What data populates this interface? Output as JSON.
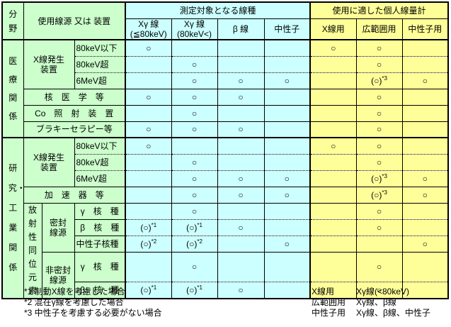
{
  "colors": {
    "green": "#ccffcc",
    "cyan": "#ccffff",
    "yellow": "#ffff99",
    "border": "#000000"
  },
  "table": {
    "corner_field": "分野",
    "corner_source": "使用線源 又は 装置",
    "group_measure": "測定対象となる線種",
    "group_dosimeter": "使用に適した個人線量計",
    "columns": [
      {
        "l1": "Xγ 線",
        "l2": "(≦80keV)"
      },
      {
        "l1": "Xγ 線",
        "l2": "(80keV<)"
      },
      {
        "l1": "β 線",
        "l2": ""
      },
      {
        "l1": "中性子",
        "l2": ""
      },
      {
        "l1": "X線用",
        "l2": ""
      },
      {
        "l1": "広範囲用",
        "l2": ""
      },
      {
        "l1": "中性子用",
        "l2": ""
      }
    ],
    "medical": {
      "section": "医療関係",
      "xray_device_l1": "X線発生",
      "xray_device_l2": "装置",
      "sub_low": "80keV以下",
      "sub_mid": "80keV超",
      "sub_high": "6MeV超",
      "nuclear_medicine": "核　医　学　等",
      "co_irradiation": "Co　照　射　装　置",
      "brachytherapy": "ブラキーセラピー等",
      "marks": {
        "low": [
          "○",
          "",
          "",
          "",
          "○",
          "○",
          ""
        ],
        "mid": [
          "",
          "○",
          "",
          "",
          "",
          "○",
          ""
        ],
        "high": [
          "",
          "○",
          "○",
          "○",
          "",
          "(○)*3",
          "○"
        ],
        "nuclear": [
          "○",
          "○",
          "○",
          "",
          "",
          "○",
          ""
        ],
        "co": [
          "",
          "○",
          "",
          "",
          "",
          "○",
          ""
        ],
        "brachy": [
          "○",
          "○",
          "○",
          "",
          "",
          "○",
          ""
        ]
      }
    },
    "research": {
      "section": "研究・工業関係",
      "xray_device_l1": "X線発生",
      "xray_device_l2": "装置",
      "sub_low": "80keV以下",
      "sub_mid": "80keV超",
      "sub_high": "6MeV超",
      "accelerator": "加　速　器　等",
      "ri": "放射性同位元素",
      "sealed_l1": "密封",
      "sealed_l2": "線源",
      "unsealed_l1": "非密封",
      "unsealed_l2": "線源",
      "gamma": "γ　核　種",
      "beta": "β　核　種",
      "neutron_nuclide": "中性子核種",
      "marks": {
        "low": [
          "○",
          "",
          "",
          "",
          "○",
          "○",
          ""
        ],
        "mid": [
          "",
          "○",
          "",
          "",
          "",
          "○",
          ""
        ],
        "high": [
          "",
          "○",
          "○",
          "○",
          "",
          "(○)*3",
          "○"
        ],
        "accel": [
          "",
          "○",
          "○",
          "○",
          "",
          "(○)*3",
          "○"
        ],
        "sealed_gamma": [
          "",
          "○",
          "",
          "",
          "",
          "○",
          ""
        ],
        "sealed_beta": [
          "(○)*1",
          "(○)*1",
          "○",
          "",
          "",
          "○",
          ""
        ],
        "sealed_neutron": [
          "(○)*2",
          "(○)*2",
          "",
          "○",
          "",
          "",
          "○"
        ],
        "unsealed_gamma": [
          "",
          "○",
          "",
          "",
          "",
          "○",
          ""
        ],
        "unsealed_beta": [
          "(○)*1",
          "(○)*1",
          "○",
          "",
          "",
          "○",
          ""
        ]
      }
    }
  },
  "footnotes": [
    "*1 制動X線を考慮した場合",
    "*2 混在γ線を考慮した場合",
    "*3 中性子を考慮する必要がない場合"
  ],
  "legend": [
    {
      "term": "X線用",
      "def": "Xγ線(<80keV)"
    },
    {
      "term": "広範囲用",
      "def": "Xγ線、β線"
    },
    {
      "term": "中性子用",
      "def": "Xγ線、β線、中性子"
    }
  ]
}
